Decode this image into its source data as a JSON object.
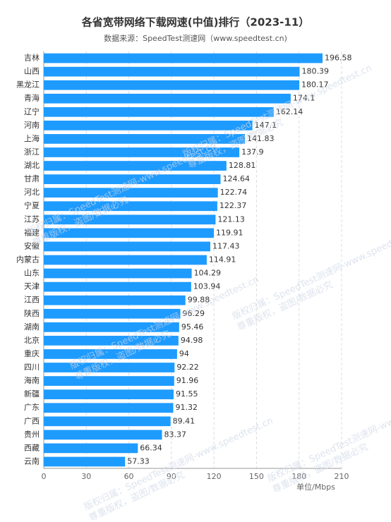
{
  "chart_data": {
    "type": "hbar",
    "title": "各省宽带网络下载网速(中值)排行（2023-11）",
    "subtitle": "数据来源：SpeedTest测速网（www.speedtest.cn)",
    "x_label": "单位/Mbps",
    "watermark": [
      "版权归属：SpeedTest测速网-www.speedtest.cn",
      "尊重版权，盗图/数据必究"
    ],
    "categories": [
      "吉林",
      "山西",
      "黑龙江",
      "青海",
      "辽宁",
      "河南",
      "上海",
      "浙江",
      "湖北",
      "甘肃",
      "河北",
      "宁夏",
      "江苏",
      "福建",
      "安徽",
      "内蒙古",
      "山东",
      "天津",
      "江西",
      "陕西",
      "湖南",
      "北京",
      "重庆",
      "四川",
      "海南",
      "新疆",
      "广东",
      "广西",
      "贵州",
      "西藏",
      "云南"
    ],
    "values": [
      196.58,
      180.39,
      180.17,
      174.1,
      162.14,
      147.1,
      141.83,
      137.9,
      128.81,
      124.64,
      122.74,
      122.37,
      121.13,
      119.91,
      117.43,
      114.91,
      104.29,
      103.94,
      99.88,
      96.29,
      95.46,
      94.98,
      94,
      92.22,
      91.96,
      91.55,
      91.32,
      89.41,
      83.37,
      66.34,
      57.33
    ],
    "color": "#1e9bff",
    "xlim": [
      0,
      210
    ],
    "xticks": [
      0,
      30,
      60,
      90,
      120,
      150,
      180,
      210
    ],
    "grid": true
  }
}
